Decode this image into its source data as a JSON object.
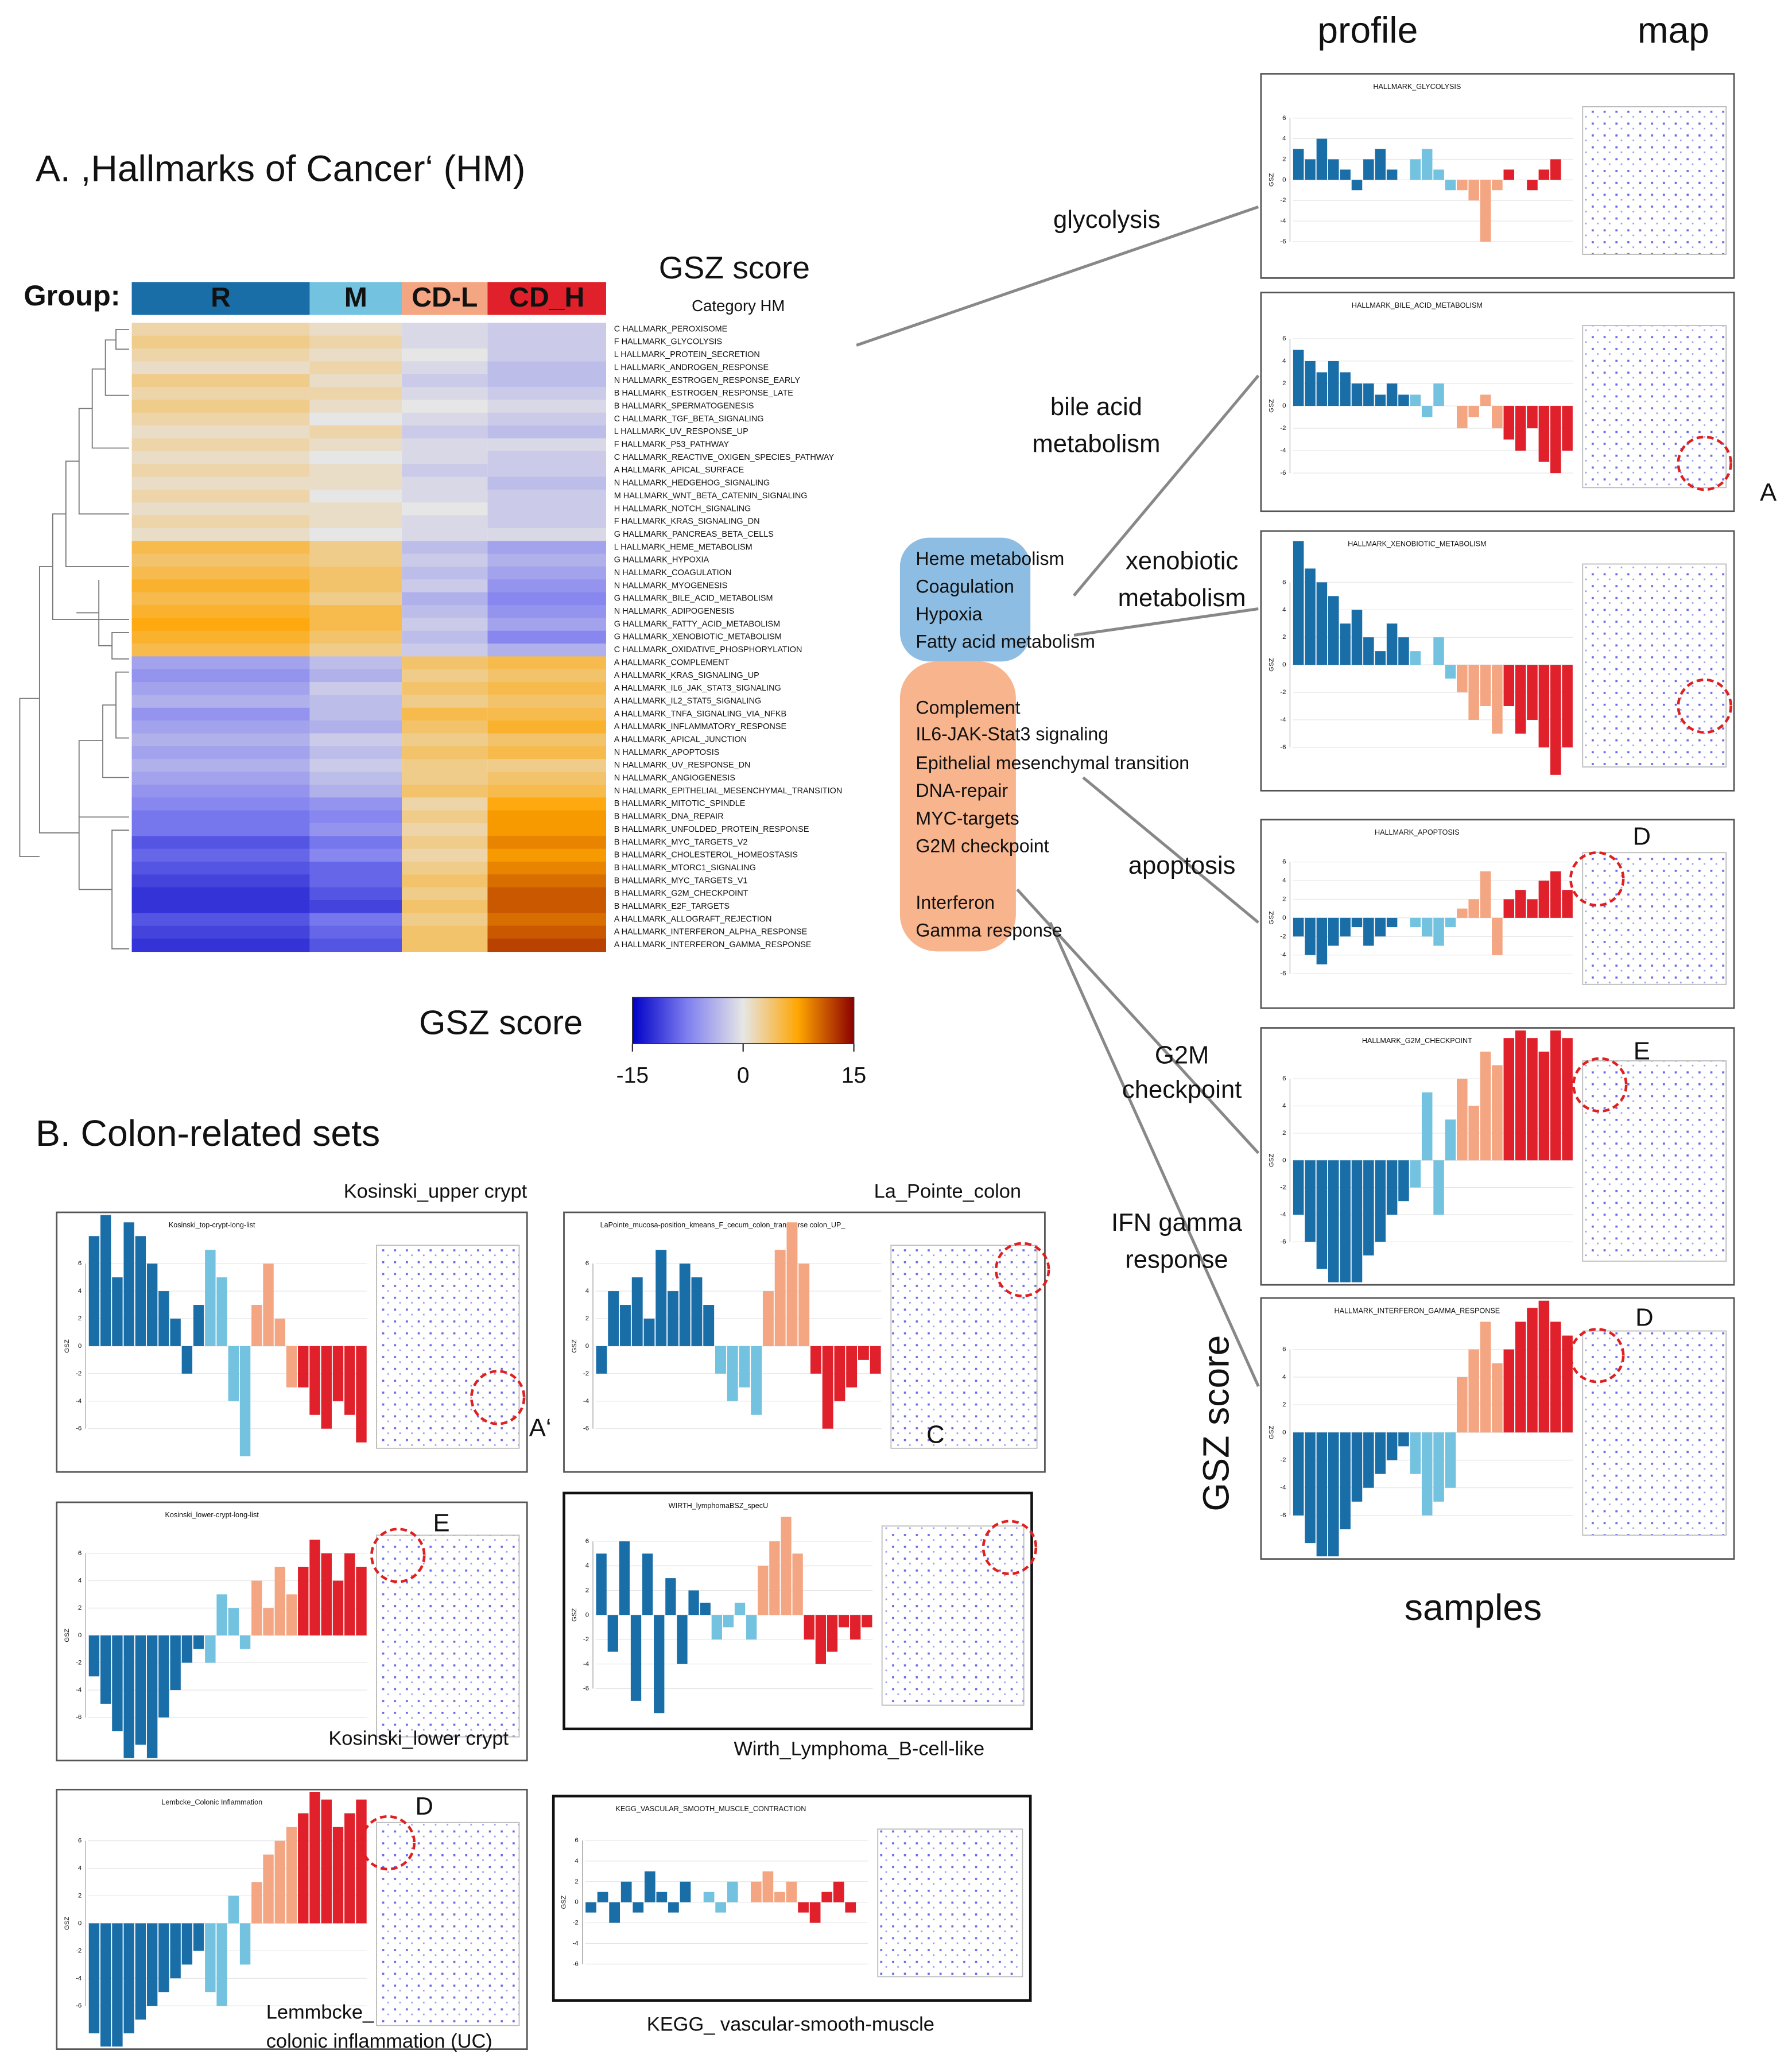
{
  "panel_a": {
    "title": "A. ,Hallmarks of Cancer‘ (HM)",
    "group_label": "Group:",
    "groups": [
      {
        "name": "R",
        "color": "#1a6ea8"
      },
      {
        "name": "M",
        "color": "#73c2e0"
      },
      {
        "name": "CD-L",
        "color": "#f4a582"
      },
      {
        "name": "CD_H",
        "color": "#e0202a"
      }
    ],
    "score_title": "GSZ score",
    "category_label": "Category HM",
    "heatmap": {
      "rows": [
        "C HALLMARK_PEROXISOME",
        "F HALLMARK_GLYCOLYSIS",
        "L HALLMARK_PROTEIN_SECRETION",
        "L HALLMARK_ANDROGEN_RESPONSE",
        "N HALLMARK_ESTROGEN_RESPONSE_EARLY",
        "B HALLMARK_ESTROGEN_RESPONSE_LATE",
        "B HALLMARK_SPERMATOGENESIS",
        "C HALLMARK_TGF_BETA_SIGNALING",
        "L HALLMARK_UV_RESPONSE_UP",
        "F HALLMARK_P53_PATHWAY",
        "C HALLMARK_REACTIVE_OXIGEN_SPECIES_PATHWAY",
        "A HALLMARK_APICAL_SURFACE",
        "N HALLMARK_HEDGEHOG_SIGNALING",
        "M HALLMARK_WNT_BETA_CATENIN_SIGNALING",
        "H HALLMARK_NOTCH_SIGNALING",
        "F HALLMARK_KRAS_SIGNALING_DN",
        "G HALLMARK_PANCREAS_BETA_CELLS",
        "L HALLMARK_HEME_METABOLISM",
        "G HALLMARK_HYPOXIA",
        "N HALLMARK_COAGULATION",
        "N HALLMARK_MYOGENESIS",
        "G HALLMARK_BILE_ACID_METABOLISM",
        "N HALLMARK_ADIPOGENESIS",
        "G HALLMARK_FATTY_ACID_METABOLISM",
        "G HALLMARK_XENOBIOTIC_METABOLISM",
        "C HALLMARK_OXIDATIVE_PHOSPHORYLATION",
        "A HALLMARK_COMPLEMENT",
        "A HALLMARK_KRAS_SIGNALING_UP",
        "A HALLMARK_IL6_JAK_STAT3_SIGNALING",
        "A HALLMARK_IL2_STAT5_SIGNALING",
        "A HALLMARK_TNFA_SIGNALING_VIA_NFKB",
        "A HALLMARK_INFLAMMATORY_RESPONSE",
        "A HALLMARK_APICAL_JUNCTION",
        "N HALLMARK_APOPTOSIS",
        "N HALLMARK_UV_RESPONSE_DN",
        "N HALLMARK_ANGIOGENESIS",
        "N HALLMARK_EPITHELIAL_MESENCHYMAL_TRANSITION",
        "B HALLMARK_MITOTIC_SPINDLE",
        "B HALLMARK_DNA_REPAIR",
        "B HALLMARK_UNFOLDED_PROTEIN_RESPONSE",
        "B HALLMARK_MYC_TARGETS_V2",
        "B HALLMARK_CHOLESTEROL_HOMEOSTASIS",
        "B HALLMARK_MTORC1_SIGNALING",
        "B HALLMARK_MYC_TARGETS_V1",
        "B HALLMARK_G2M_CHECKPOINT",
        "B HALLMARK_E2F_TARGETS",
        "A HALLMARK_ALLOGRAFT_REJECTION",
        "A HALLMARK_INTERFERON_ALPHA_RESPONSE",
        "A HALLMARK_INTERFERON_GAMMA_RESPONSE"
      ],
      "values": [
        [
          2,
          1,
          -1,
          -2
        ],
        [
          3,
          2,
          -1,
          -2
        ],
        [
          2,
          1,
          0,
          -2
        ],
        [
          1,
          2,
          -1,
          -3
        ],
        [
          3,
          1,
          -2,
          -3
        ],
        [
          2,
          2,
          -1,
          -2
        ],
        [
          3,
          1,
          0,
          -1
        ],
        [
          2,
          0,
          -1,
          -2
        ],
        [
          1,
          2,
          -2,
          -3
        ],
        [
          2,
          1,
          -1,
          -1
        ],
        [
          1,
          0,
          -1,
          -2
        ],
        [
          2,
          1,
          -2,
          -2
        ],
        [
          1,
          1,
          -1,
          -3
        ],
        [
          2,
          0,
          -1,
          -2
        ],
        [
          1,
          1,
          0,
          -2
        ],
        [
          2,
          1,
          -1,
          -2
        ],
        [
          1,
          0,
          -1,
          -1
        ],
        [
          5,
          3,
          -3,
          -5
        ],
        [
          4,
          3,
          -2,
          -4
        ],
        [
          5,
          4,
          -3,
          -5
        ],
        [
          6,
          4,
          -2,
          -6
        ],
        [
          5,
          3,
          -4,
          -7
        ],
        [
          6,
          5,
          -3,
          -6
        ],
        [
          7,
          5,
          -2,
          -5
        ],
        [
          6,
          4,
          -3,
          -7
        ],
        [
          5,
          3,
          -2,
          -4
        ],
        [
          -5,
          -3,
          4,
          5
        ],
        [
          -6,
          -4,
          3,
          4
        ],
        [
          -5,
          -2,
          4,
          5
        ],
        [
          -4,
          -3,
          3,
          4
        ],
        [
          -6,
          -3,
          5,
          5
        ],
        [
          -5,
          -4,
          4,
          6
        ],
        [
          -4,
          -2,
          3,
          4
        ],
        [
          -5,
          -3,
          4,
          5
        ],
        [
          -4,
          -2,
          3,
          3
        ],
        [
          -5,
          -3,
          3,
          4
        ],
        [
          -6,
          -4,
          4,
          5
        ],
        [
          -7,
          -6,
          2,
          7
        ],
        [
          -8,
          -7,
          3,
          8
        ],
        [
          -8,
          -6,
          2,
          8
        ],
        [
          -10,
          -8,
          3,
          9
        ],
        [
          -9,
          -7,
          2,
          8
        ],
        [
          -10,
          -9,
          3,
          9
        ],
        [
          -11,
          -9,
          4,
          10
        ],
        [
          -12,
          -10,
          3,
          11
        ],
        [
          -12,
          -11,
          4,
          11
        ],
        [
          -10,
          -8,
          3,
          10
        ],
        [
          -11,
          -9,
          4,
          11
        ],
        [
          -12,
          -10,
          4,
          12
        ]
      ]
    },
    "colorbar": {
      "title": "GSZ score",
      "clim": [
        -15,
        15
      ],
      "ticks": [
        -15,
        0,
        15
      ]
    }
  },
  "panel_b_title": "B. Colon-related sets",
  "column_headers": [
    "profile",
    "map"
  ],
  "axis_titles": {
    "y": "GSZ score",
    "x": "samples"
  },
  "profile_ylabel": "GSZ",
  "profile_ylim": [
    -8,
    8
  ],
  "profile_yticks": [
    -6,
    -4,
    -2,
    0,
    2,
    4,
    6
  ],
  "hm_box": {
    "blue": [
      "Heme metabolism",
      "Coagulation",
      "Hypoxia",
      "Fatty acid metabolism"
    ],
    "orange": [
      "Complement",
      "IL6-JAK-Stat3 signaling",
      "Epithelial  mesenchymal transition",
      "DNA-repair",
      "MYC-targets",
      "G2M checkpoint",
      "Interferon",
      "Gamma response"
    ]
  },
  "right_panels": [
    {
      "title": "HALLMARK_GLYCOLYSIS",
      "label": [
        "glycolysis"
      ],
      "values": [
        [
          3,
          2,
          4,
          2,
          1,
          -1,
          2,
          3,
          1,
          0
        ],
        [
          2,
          3,
          1,
          -1
        ],
        [
          -1,
          -2,
          -6,
          -1
        ],
        [
          1,
          0,
          -1,
          1,
          2,
          0
        ]
      ]
    },
    {
      "title": "HALLMARK_BILE_ACID_METABOLISM",
      "label": [
        "bile acid",
        "metabolism"
      ],
      "letter": "A",
      "values": [
        [
          5,
          4,
          3,
          4,
          3,
          2,
          2,
          1,
          2,
          1
        ],
        [
          1,
          -1,
          2,
          0
        ],
        [
          -2,
          -1,
          1,
          -2
        ],
        [
          -3,
          -4,
          -2,
          -5,
          -6,
          -4
        ]
      ]
    },
    {
      "title": "HALLMARK_XENOBIOTIC_METABOLISM",
      "label": [
        "xenobiotic",
        "metabolism"
      ],
      "values": [
        [
          9,
          7,
          6,
          5,
          3,
          4,
          2,
          1,
          3,
          2
        ],
        [
          1,
          0,
          2,
          -1
        ],
        [
          -2,
          -4,
          -3,
          -5
        ],
        [
          -3,
          -5,
          -4,
          -6,
          -8,
          -6
        ]
      ]
    },
    {
      "title": "HALLMARK_APOPTOSIS",
      "label": [
        "apoptosis"
      ],
      "letter": "D",
      "values": [
        [
          -2,
          -4,
          -5,
          -3,
          -2,
          -1,
          -3,
          -2,
          -1,
          0
        ],
        [
          -1,
          -2,
          -3,
          -1
        ],
        [
          1,
          2,
          5,
          -4
        ],
        [
          2,
          3,
          2,
          4,
          5,
          3
        ]
      ]
    },
    {
      "title": "HALLMARK_G2M_CHECKPOINT",
      "label": [
        "G2M",
        "checkpoint"
      ],
      "letter": "E",
      "values": [
        [
          -4,
          -6,
          -8,
          -9,
          -10,
          -9,
          -7,
          -6,
          -4,
          -3
        ],
        [
          -2,
          5,
          -4,
          3
        ],
        [
          6,
          4,
          8,
          7
        ],
        [
          9,
          10,
          9,
          8,
          10,
          9
        ]
      ]
    },
    {
      "title": "HALLMARK_INTERFERON_GAMMA_RESPONSE",
      "label": [
        "IFN gamma",
        "response"
      ],
      "letter": "D",
      "values": [
        [
          -6,
          -8,
          -10,
          -9,
          -7,
          -5,
          -4,
          -3,
          -2,
          -1
        ],
        [
          -3,
          -6,
          -5,
          -4
        ],
        [
          4,
          6,
          8,
          5
        ],
        [
          6,
          8,
          9,
          10,
          8,
          7
        ]
      ]
    }
  ],
  "colon_panels": [
    {
      "title": "Kosinski_top-crypt-long-list",
      "label": [
        "Kosinski_upper crypt"
      ],
      "letter": "A‘",
      "values": [
        [
          8,
          10,
          5,
          9,
          8,
          6,
          4,
          2,
          -2,
          3
        ],
        [
          7,
          5,
          -4,
          -8
        ],
        [
          3,
          6,
          2,
          -3
        ],
        [
          -3,
          -5,
          -6,
          -4,
          -5,
          -7
        ]
      ]
    },
    {
      "title": "LaPointe_mucosa-position_kmeans_F_cecum_colon_transverse colon_UP_",
      "label": [
        "La_Pointe_colon"
      ],
      "letter": "C",
      "values": [
        [
          -2,
          4,
          3,
          5,
          2,
          7,
          4,
          6,
          5,
          3
        ],
        [
          -2,
          -4,
          -3,
          -5
        ],
        [
          4,
          7,
          9,
          6
        ],
        [
          -2,
          -6,
          -4,
          -3,
          -1,
          -2
        ]
      ]
    },
    {
      "title": "Kosinski_lower-crypt-long-list",
      "label": [
        "Kosinski_lower crypt"
      ],
      "letter": "E",
      "values": [
        [
          -3,
          -5,
          -7,
          -9,
          -8,
          -10,
          -6,
          -4,
          -2,
          -1
        ],
        [
          -2,
          3,
          2,
          -1
        ],
        [
          4,
          2,
          5,
          3
        ],
        [
          5,
          7,
          6,
          4,
          6,
          5
        ]
      ]
    },
    {
      "title": "WIRTH_lymphomaBSZ_specU",
      "label": [
        "Wirth_Lymphoma_B-cell-like"
      ],
      "values": [
        [
          5,
          -3,
          6,
          -7,
          5,
          -8,
          3,
          -4,
          2,
          1
        ],
        [
          -2,
          -1,
          1,
          -2
        ],
        [
          4,
          6,
          8,
          5
        ],
        [
          -2,
          -4,
          -3,
          -1,
          -2,
          -1
        ]
      ]
    },
    {
      "title": "Lembcke_Colonic Inflammation",
      "label": [
        "Lemmbcke_",
        "colonic inflammation (UC)"
      ],
      "letter": "D",
      "values": [
        [
          -8,
          -10,
          -9,
          -8,
          -7,
          -6,
          -5,
          -4,
          -3,
          -2
        ],
        [
          -5,
          -6,
          2,
          -3
        ],
        [
          3,
          5,
          6,
          7
        ],
        [
          8,
          10,
          9,
          7,
          8,
          9
        ]
      ]
    },
    {
      "title": "KEGG_VASCULAR_SMOOTH_MUSCLE_CONTRACTION",
      "label": [
        "KEGG_ vascular-smooth-muscle"
      ],
      "values": [
        [
          -1,
          1,
          -2,
          2,
          -1,
          3,
          1,
          -1,
          2,
          0
        ],
        [
          1,
          -1,
          2,
          0
        ],
        [
          2,
          3,
          1,
          2
        ],
        [
          -1,
          -2,
          1,
          2,
          -1,
          0
        ]
      ]
    }
  ]
}
